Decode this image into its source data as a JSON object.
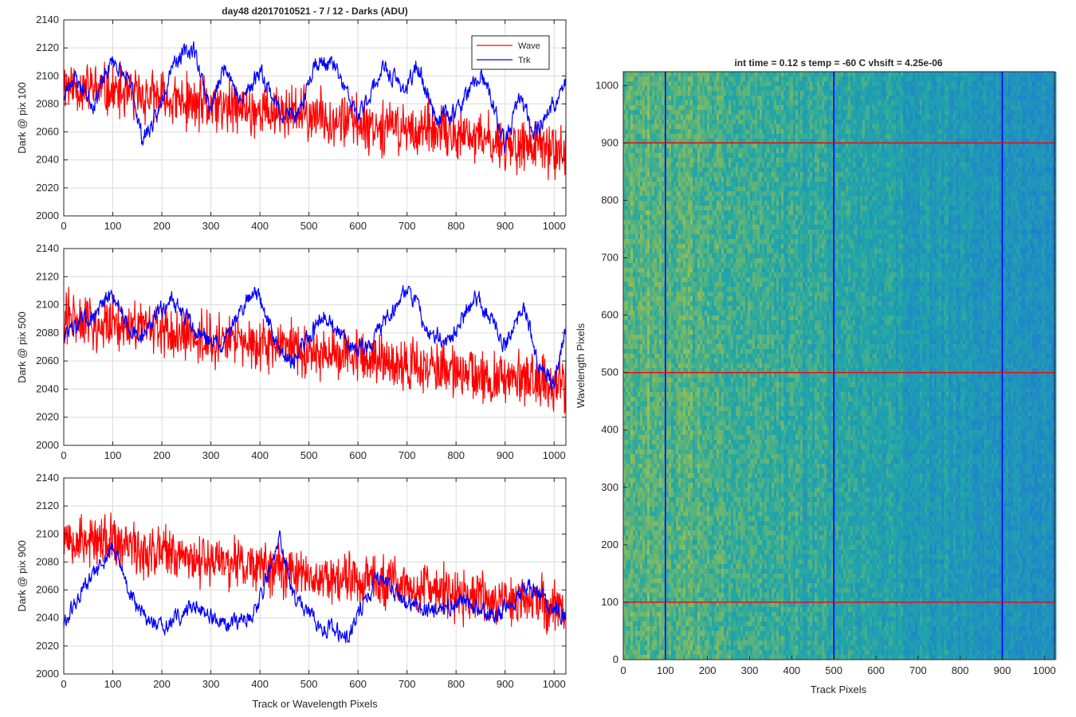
{
  "figure_title": "day48 d2017010521 - 7 / 12 - Darks (ADU)",
  "colors": {
    "wave": "#ff0000",
    "trk": "#0000ff",
    "grid": "#dcdcdc",
    "heat_low": "#1f7fd0",
    "heat_mid": "#21a8a6",
    "heat_high": "#b6c43a"
  },
  "chart_data": [
    {
      "type": "line",
      "ylabel": "Dark @ pix 100",
      "xlabel": "",
      "xlim": [
        0,
        1024
      ],
      "ylim": [
        2000,
        2140
      ],
      "xticks": [
        "0",
        "100",
        "200",
        "300",
        "400",
        "500",
        "600",
        "700",
        "800",
        "900",
        "1000"
      ],
      "yticks": [
        "2000",
        "2020",
        "2040",
        "2060",
        "2080",
        "2100",
        "2120",
        "2140"
      ],
      "grid": true,
      "legend_position": "top-right",
      "series": [
        {
          "name": "Wave",
          "color": "#ff0000",
          "profile": [
            [
              0,
              2095
            ],
            [
              100,
              2088
            ],
            [
              300,
              2078
            ],
            [
              500,
              2072
            ],
            [
              700,
              2062
            ],
            [
              900,
              2052
            ],
            [
              1024,
              2046
            ]
          ],
          "noise": 16,
          "seed": 11
        },
        {
          "name": "Trk",
          "color": "#0000ff",
          "profile": [
            [
              0,
              2085
            ],
            [
              20,
              2100
            ],
            [
              60,
              2080
            ],
            [
              100,
              2112
            ],
            [
              140,
              2090
            ],
            [
              160,
              2055
            ],
            [
              190,
              2070
            ],
            [
              220,
              2110
            ],
            [
              265,
              2120
            ],
            [
              300,
              2075
            ],
            [
              330,
              2110
            ],
            [
              360,
              2080
            ],
            [
              400,
              2105
            ],
            [
              440,
              2075
            ],
            [
              480,
              2070
            ],
            [
              510,
              2110
            ],
            [
              550,
              2108
            ],
            [
              600,
              2070
            ],
            [
              650,
              2105
            ],
            [
              700,
              2090
            ],
            [
              720,
              2108
            ],
            [
              760,
              2070
            ],
            [
              800,
              2075
            ],
            [
              850,
              2100
            ],
            [
              870,
              2085
            ],
            [
              900,
              2050
            ],
            [
              930,
              2085
            ],
            [
              960,
              2060
            ],
            [
              1000,
              2080
            ],
            [
              1024,
              2095
            ]
          ],
          "noise": 5,
          "seed": 23
        }
      ]
    },
    {
      "type": "line",
      "ylabel": "Dark @ pix 500",
      "xlabel": "",
      "xlim": [
        0,
        1024
      ],
      "ylim": [
        2000,
        2140
      ],
      "xticks": [
        "0",
        "100",
        "200",
        "300",
        "400",
        "500",
        "600",
        "700",
        "800",
        "900",
        "1000"
      ],
      "yticks": [
        "2000",
        "2020",
        "2040",
        "2060",
        "2080",
        "2100",
        "2120",
        "2140"
      ],
      "grid": true,
      "series": [
        {
          "name": "Wave",
          "color": "#ff0000",
          "profile": [
            [
              0,
              2092
            ],
            [
              100,
              2085
            ],
            [
              300,
              2075
            ],
            [
              500,
              2068
            ],
            [
              700,
              2058
            ],
            [
              900,
              2048
            ],
            [
              1024,
              2042
            ]
          ],
          "noise": 16,
          "seed": 31
        },
        {
          "name": "Trk",
          "color": "#0000ff",
          "profile": [
            [
              0,
              2080
            ],
            [
              60,
              2092
            ],
            [
              100,
              2108
            ],
            [
              150,
              2075
            ],
            [
              220,
              2105
            ],
            [
              270,
              2080
            ],
            [
              320,
              2072
            ],
            [
              390,
              2112
            ],
            [
              440,
              2068
            ],
            [
              470,
              2060
            ],
            [
              530,
              2095
            ],
            [
              580,
              2070
            ],
            [
              620,
              2070
            ],
            [
              700,
              2112
            ],
            [
              750,
              2078
            ],
            [
              790,
              2075
            ],
            [
              840,
              2108
            ],
            [
              900,
              2072
            ],
            [
              940,
              2098
            ],
            [
              970,
              2055
            ],
            [
              1000,
              2045
            ],
            [
              1024,
              2085
            ]
          ],
          "noise": 5,
          "seed": 47
        }
      ]
    },
    {
      "type": "line",
      "ylabel": "Dark @ pix 900",
      "xlabel": "Track or Wavelength Pixels",
      "xlim": [
        0,
        1024
      ],
      "ylim": [
        2000,
        2140
      ],
      "xticks": [
        "0",
        "100",
        "200",
        "300",
        "400",
        "500",
        "600",
        "700",
        "800",
        "900",
        "1000"
      ],
      "yticks": [
        "2000",
        "2020",
        "2040",
        "2060",
        "2080",
        "2100",
        "2120",
        "2140"
      ],
      "grid": true,
      "series": [
        {
          "name": "Wave",
          "color": "#ff0000",
          "profile": [
            [
              0,
              2100
            ],
            [
              100,
              2092
            ],
            [
              300,
              2082
            ],
            [
              500,
              2072
            ],
            [
              700,
              2062
            ],
            [
              900,
              2052
            ],
            [
              1024,
              2048
            ]
          ],
          "noise": 16,
          "seed": 53
        },
        {
          "name": "Trk",
          "color": "#0000ff",
          "profile": [
            [
              0,
              2035
            ],
            [
              40,
              2060
            ],
            [
              100,
              2090
            ],
            [
              150,
              2045
            ],
            [
              200,
              2032
            ],
            [
              270,
              2050
            ],
            [
              330,
              2032
            ],
            [
              390,
              2045
            ],
            [
              440,
              2095
            ],
            [
              470,
              2055
            ],
            [
              520,
              2035
            ],
            [
              580,
              2028
            ],
            [
              640,
              2070
            ],
            [
              700,
              2050
            ],
            [
              760,
              2045
            ],
            [
              820,
              2052
            ],
            [
              880,
              2040
            ],
            [
              950,
              2065
            ],
            [
              1000,
              2045
            ],
            [
              1024,
              2040
            ]
          ],
          "noise": 5,
          "seed": 61
        }
      ]
    },
    {
      "type": "heatmap",
      "title": "int time = 0.12 s    temp = -60 C    vhsift = 4.25e-06",
      "xlabel": "Track Pixels",
      "ylabel": "Wavelength Pixels",
      "xlim": [
        0,
        1024
      ],
      "ylim": [
        0,
        1024
      ],
      "xticks": [
        "0",
        "100",
        "200",
        "300",
        "400",
        "500",
        "600",
        "700",
        "800",
        "900",
        "1000"
      ],
      "yticks": [
        "0",
        "100",
        "200",
        "300",
        "400",
        "500",
        "600",
        "700",
        "800",
        "900",
        "1000"
      ],
      "horizontal_markers": {
        "values": [
          100,
          500,
          900
        ],
        "color": "#ff0000"
      },
      "vertical_markers": {
        "values": [
          100,
          500,
          900
        ],
        "color": "#0000ff"
      }
    }
  ]
}
